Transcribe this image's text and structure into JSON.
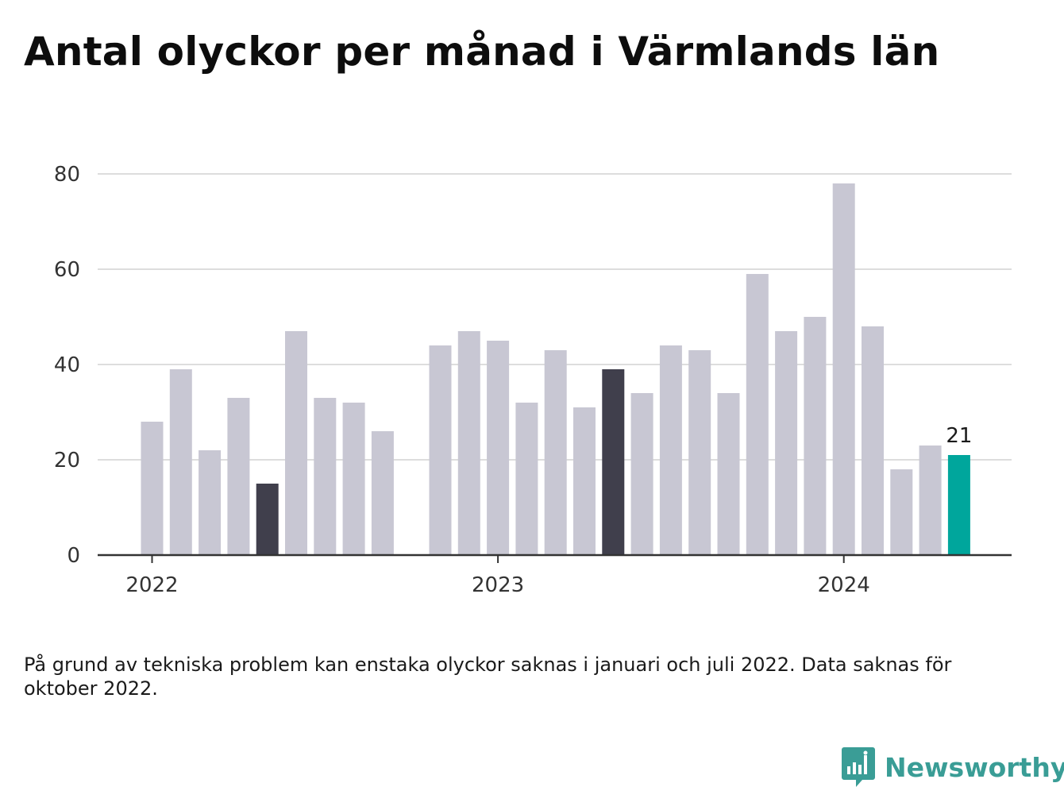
{
  "title": "Antal olyckor per månad i Värmlands län",
  "footnote": "På grund av tekniska problem kan enstaka olyckor saknas i januari och juli 2022. Data saknas för oktober 2022.",
  "brand": {
    "name": "Newsworthy",
    "icon": "newsworthy-logo-icon",
    "color": "#3a9d96"
  },
  "colors": {
    "default_bar": "#c8c7d3",
    "highlight_bar": "#403f4c",
    "latest_bar": "#00a69c",
    "gridline": "#dddddd",
    "axis": "#333333"
  },
  "chart_data": {
    "type": "bar",
    "x": [
      "2022-01",
      "2022-02",
      "2022-03",
      "2022-04",
      "2022-05",
      "2022-06",
      "2022-07",
      "2022-08",
      "2022-09",
      "2022-10",
      "2022-11",
      "2022-12",
      "2023-01",
      "2023-02",
      "2023-03",
      "2023-04",
      "2023-05",
      "2023-06",
      "2023-07",
      "2023-08",
      "2023-09",
      "2023-10",
      "2023-11",
      "2023-12",
      "2024-01",
      "2024-02",
      "2024-03",
      "2024-04",
      "2024-05"
    ],
    "values": [
      28,
      39,
      22,
      33,
      15,
      47,
      33,
      32,
      26,
      null,
      44,
      47,
      45,
      32,
      43,
      31,
      39,
      34,
      44,
      43,
      34,
      59,
      47,
      50,
      78,
      48,
      18,
      23,
      21
    ],
    "highlight": [
      "2022-05",
      "2023-05"
    ],
    "latest": "2024-05",
    "latest_label": "21",
    "x_ticks": [
      {
        "at": "2022-01",
        "label": "2022"
      },
      {
        "at": "2023-01",
        "label": "2023"
      },
      {
        "at": "2024-01",
        "label": "2024"
      }
    ],
    "y_ticks": [
      0,
      20,
      40,
      60,
      80
    ],
    "ylim": [
      0,
      80
    ],
    "grid": true,
    "title": "Antal olyckor per månad i Värmlands län",
    "xlabel": "",
    "ylabel": ""
  }
}
